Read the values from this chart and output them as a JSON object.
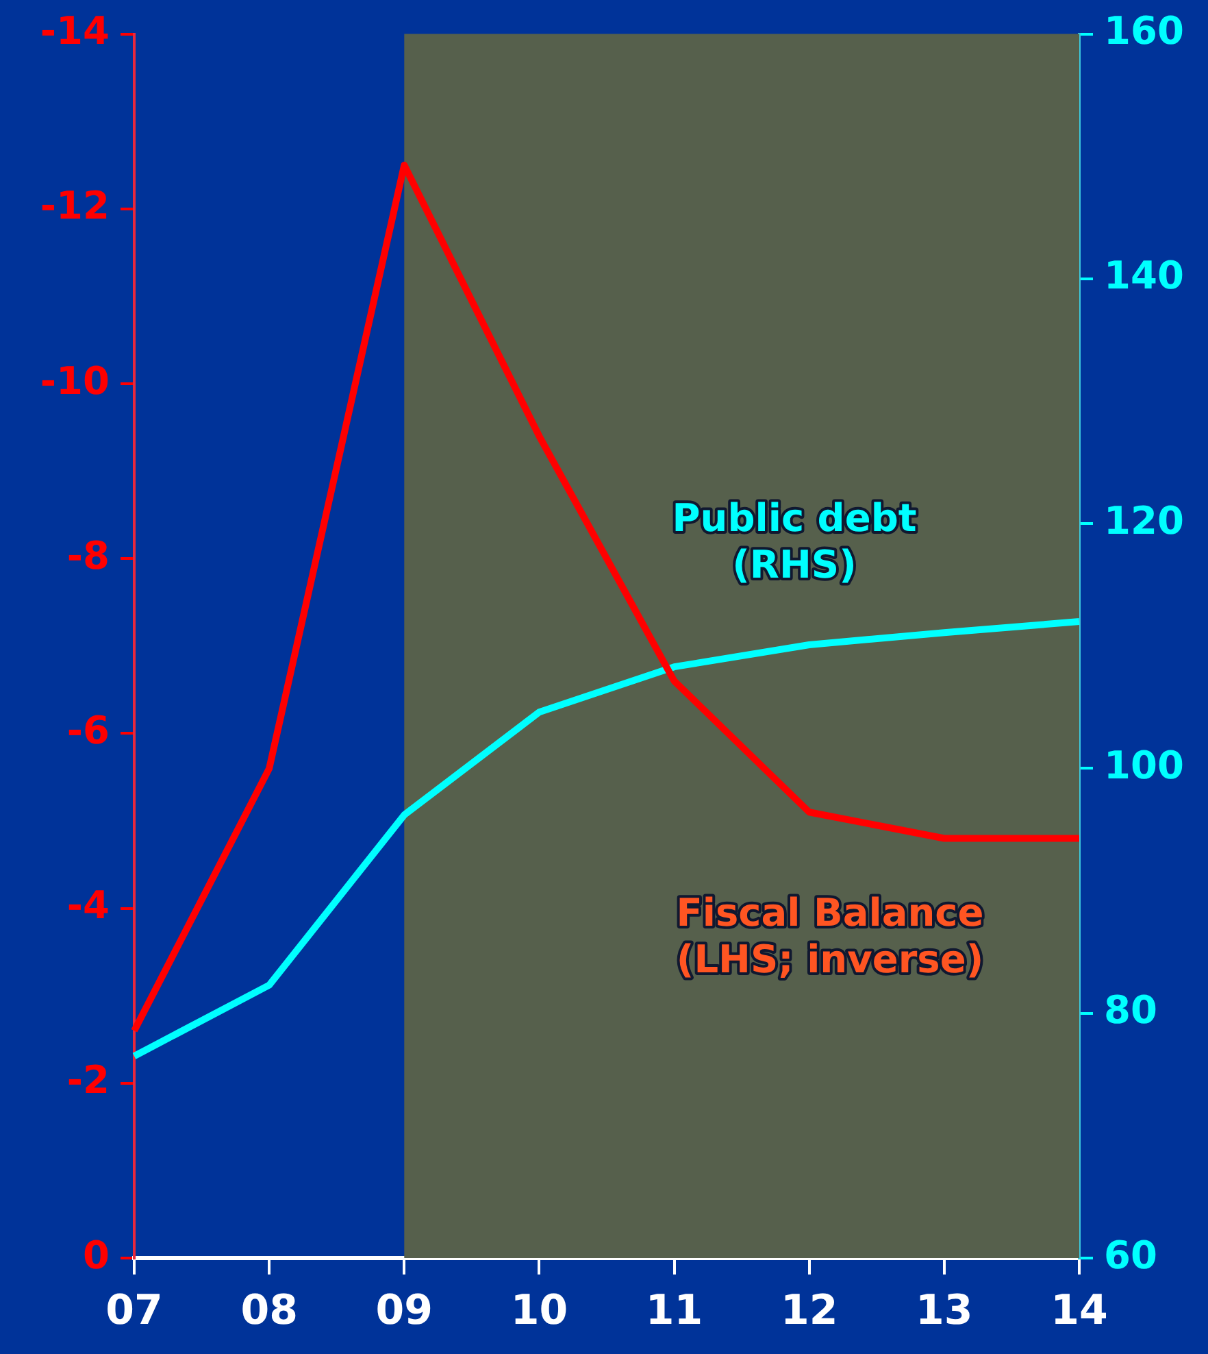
{
  "chart_data": {
    "type": "line",
    "categories": [
      "07",
      "08",
      "09",
      "10",
      "11",
      "12",
      "13",
      "14"
    ],
    "series": [
      {
        "color": "#ff0000",
        "values": [
          -2.6,
          -5.6,
          -12.5,
          -9.4,
          -6.6,
          -5.1,
          -4.8,
          -4.8
        ]
      },
      {
        "color": "#00ffff",
        "axis": "y2",
        "values": [
          76.5,
          82.3,
          96.2,
          104.6,
          108.3,
          110.1,
          111.1,
          112
        ]
      }
    ],
    "ylim": [
      0,
      -14
    ],
    "yticks": [
      0,
      -2,
      -4,
      -6,
      -8,
      -10,
      -12,
      -14
    ],
    "y2lim": [
      60,
      160
    ],
    "y2ticks": [
      60,
      80,
      100,
      120,
      140,
      160
    ],
    "bands": [
      {
        "axis": "x",
        "from": "09",
        "to": "14",
        "color": "#56604c"
      }
    ],
    "annotations": [
      "Fiscal Balance\n(LHS; inverse)",
      "Public debt\n(RHS)"
    ],
    "grid": false,
    "legend": false,
    "marker": "none",
    "line_style": "solid"
  }
}
